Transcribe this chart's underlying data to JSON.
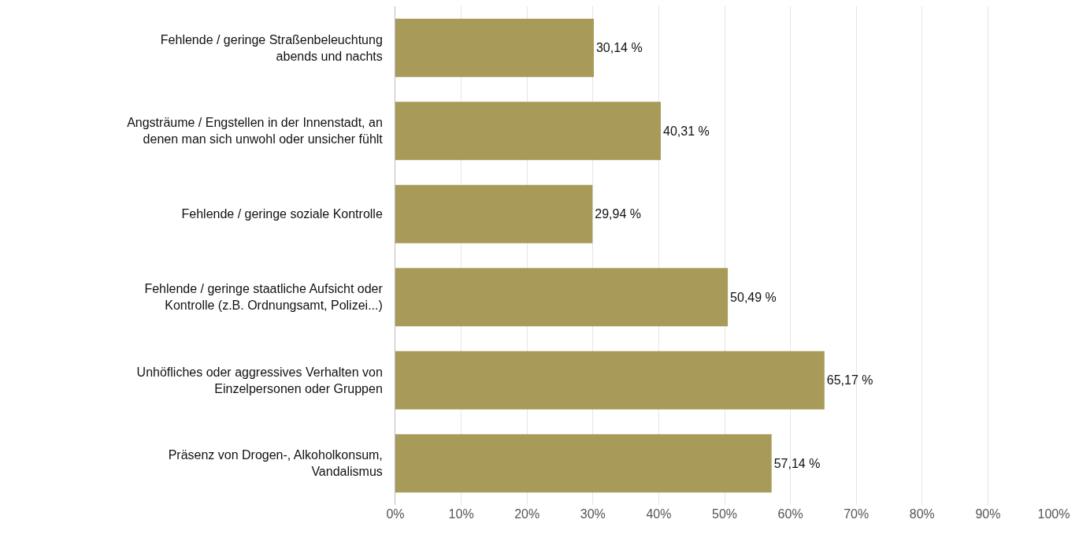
{
  "chart_data": {
    "type": "bar",
    "orientation": "horizontal",
    "categories": [
      "Fehlende / geringe Straßenbeleuchtung abends und nachts",
      "Angsträume / Engstellen in der Innenstadt, an denen man sich unwohl oder unsicher fühlt",
      "Fehlende / geringe soziale Kontrolle",
      "Fehlende / geringe staatliche Aufsicht oder Kontrolle (z.B. Ordnungsamt, Polizei...)",
      "Unhöfliches oder aggressives Verhalten von Einzelpersonen oder Gruppen",
      "Präsenz von Drogen-, Alkoholkonsum, Vandalismus"
    ],
    "values": [
      30.14,
      40.31,
      29.94,
      50.49,
      65.17,
      57.14
    ],
    "value_labels": [
      "30,14 %",
      "40,31 %",
      "29,94 %",
      "50,49 %",
      "65,17 %",
      "57,14 %"
    ],
    "color": "#a89a58",
    "xlim": [
      0,
      100
    ],
    "xticks": [
      {
        "value": 0,
        "label": "0%"
      },
      {
        "value": 10,
        "label": "10%"
      },
      {
        "value": 20,
        "label": "20%"
      },
      {
        "value": 30,
        "label": "30%"
      },
      {
        "value": 40,
        "label": "40%"
      },
      {
        "value": 50,
        "label": "50%"
      },
      {
        "value": 60,
        "label": "60%"
      },
      {
        "value": 70,
        "label": "70%"
      },
      {
        "value": 80,
        "label": "80%"
      },
      {
        "value": 90,
        "label": "90%"
      },
      {
        "value": 100,
        "label": "100%"
      }
    ],
    "grid": "x"
  }
}
